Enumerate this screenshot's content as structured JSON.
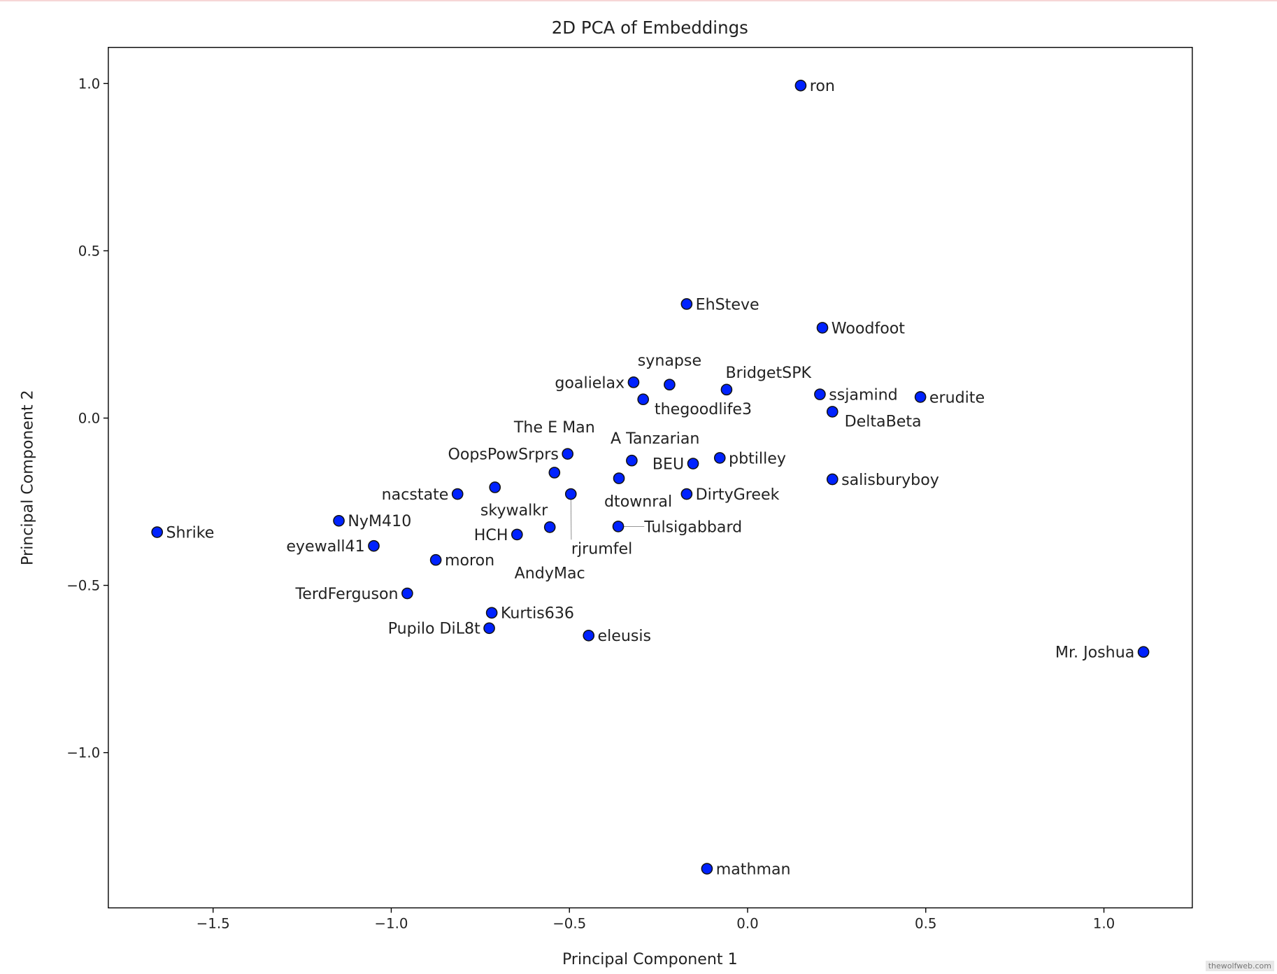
{
  "chart_data": {
    "type": "scatter",
    "title": "2D PCA of Embeddings",
    "xlabel": "Principal Component 1",
    "ylabel": "Principal Component 2",
    "xlim": [
      -1.794,
      1.248
    ],
    "ylim": [
      -1.464,
      1.108
    ],
    "xticks": [
      -1.5,
      -1.0,
      -0.5,
      0.0,
      0.5,
      1.0
    ],
    "xtick_labels": [
      "−1.5",
      "−1.0",
      "−0.5",
      "0.0",
      "0.5",
      "1.0"
    ],
    "yticks": [
      1.0,
      0.5,
      0.0,
      -0.5,
      -1.0
    ],
    "ytick_labels": [
      "1.0",
      "0.5",
      "0.0",
      "−0.5",
      "−1.0"
    ],
    "grid": false,
    "marker_color": "#0022ff",
    "marker_edge": "#111111",
    "points": [
      {
        "label": "ron",
        "x": 0.149,
        "y": 0.994
      },
      {
        "label": "EhSteve",
        "x": -0.171,
        "y": 0.341
      },
      {
        "label": "Woodfoot",
        "x": 0.21,
        "y": 0.27
      },
      {
        "label": "goalielax",
        "x": -0.32,
        "y": 0.107
      },
      {
        "label": "synapse",
        "x": -0.219,
        "y": 0.1
      },
      {
        "label": "BridgetSPK",
        "x": -0.059,
        "y": 0.085
      },
      {
        "label": "thegoodlife3",
        "x": -0.293,
        "y": 0.056
      },
      {
        "label": "ssjamind",
        "x": 0.203,
        "y": 0.071
      },
      {
        "label": "DeltaBeta",
        "x": 0.238,
        "y": 0.019
      },
      {
        "label": "erudite",
        "x": 0.485,
        "y": 0.063
      },
      {
        "label": "OopsPowSrprs",
        "x": -0.505,
        "y": -0.107
      },
      {
        "label": "The E Man",
        "x": -0.542,
        "y": -0.163
      },
      {
        "label": "A Tanzarian",
        "x": -0.325,
        "y": -0.127
      },
      {
        "label": "pbtilley",
        "x": -0.078,
        "y": -0.119
      },
      {
        "label": "BEU",
        "x": -0.153,
        "y": -0.136
      },
      {
        "label": "dtownral",
        "x": -0.361,
        "y": -0.18
      },
      {
        "label": "salisburyboy",
        "x": 0.238,
        "y": -0.183
      },
      {
        "label": "DirtyGreek",
        "x": -0.171,
        "y": -0.227
      },
      {
        "label": "skywalkr",
        "x": -0.709,
        "y": -0.207
      },
      {
        "label": "nacstate",
        "x": -0.814,
        "y": -0.227
      },
      {
        "label": "rjrumfel",
        "x": -0.496,
        "y": -0.227
      },
      {
        "label": "Shrike",
        "x": -1.657,
        "y": -0.341
      },
      {
        "label": "NyM410",
        "x": -1.147,
        "y": -0.307
      },
      {
        "label": "eyewall41",
        "x": -1.049,
        "y": -0.382
      },
      {
        "label": "moron",
        "x": -0.875,
        "y": -0.424
      },
      {
        "label": "HCH",
        "x": -0.647,
        "y": -0.348
      },
      {
        "label": "AndyMac",
        "x": -0.555,
        "y": -0.326
      },
      {
        "label": "Tulsigabbard",
        "x": -0.363,
        "y": -0.324
      },
      {
        "label": "TerdFerguson",
        "x": -0.955,
        "y": -0.524
      },
      {
        "label": "Kurtis636",
        "x": -0.718,
        "y": -0.582
      },
      {
        "label": "Pupilo DiL8t",
        "x": -0.725,
        "y": -0.628
      },
      {
        "label": "eleusis",
        "x": -0.446,
        "y": -0.65
      },
      {
        "label": "Mr. Joshua",
        "x": 1.111,
        "y": -0.699
      },
      {
        "label": "mathman",
        "x": -0.114,
        "y": -1.347
      }
    ]
  },
  "watermark": "thewolfweb.com"
}
